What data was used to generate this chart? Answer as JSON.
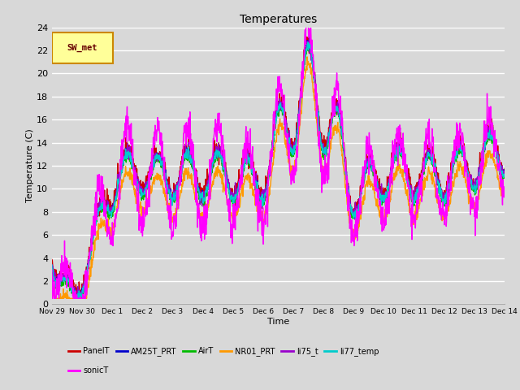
{
  "title": "Temperatures",
  "xlabel": "Time",
  "ylabel": "Temperature (C)",
  "ylim": [
    0,
    24
  ],
  "xlim_start": 0,
  "xlim_end": 15,
  "background_color": "#d8d8d8",
  "plot_bg_color": "#d8d8d8",
  "grid_color": "#ffffff",
  "legend_box_label": "SW_met",
  "legend_box_color": "#ffff99",
  "legend_box_border": "#cc8800",
  "series_colors": {
    "PanelT": "#cc0000",
    "AM25T_PRT": "#0000cc",
    "AirT": "#00bb00",
    "NR01_PRT": "#ff9900",
    "li75_t": "#9900cc",
    "li77_temp": "#00cccc",
    "sonicT": "#ff00ff"
  },
  "xtick_labels": [
    "Nov 29",
    "Nov 30",
    "Dec 1",
    "Dec 2",
    "Dec 3",
    "Dec 4",
    "Dec 5",
    "Dec 6",
    "Dec 7",
    "Dec 8",
    "Dec 9",
    "Dec 10",
    "Dec 11",
    "Dec 12",
    "Dec 13",
    "Dec 14"
  ],
  "xtick_positions": [
    0,
    1,
    2,
    3,
    4,
    5,
    6,
    7,
    8,
    9,
    10,
    11,
    12,
    13,
    14,
    15
  ],
  "ytick_positions": [
    0,
    2,
    4,
    6,
    8,
    10,
    12,
    14,
    16,
    18,
    20,
    22,
    24
  ]
}
